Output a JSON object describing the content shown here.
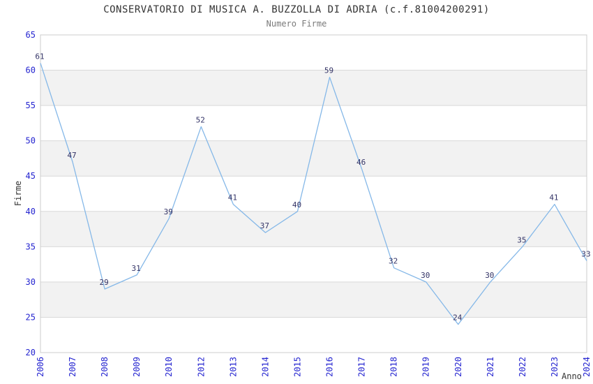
{
  "header": {
    "title": "CONSERVATORIO DI MUSICA A. BUZZOLLA DI ADRIA (c.f.81004200291)",
    "subtitle": "Numero Firme"
  },
  "chart_data": {
    "type": "line",
    "title": "CONSERVATORIO DI MUSICA A. BUZZOLLA DI ADRIA (c.f.81004200291)",
    "subtitle": "Numero Firme",
    "xlabel": "Anno",
    "ylabel": "Firme",
    "x": [
      "2006",
      "2007",
      "2008",
      "2009",
      "2010",
      "2012",
      "2013",
      "2014",
      "2015",
      "2016",
      "2017",
      "2018",
      "2019",
      "2020",
      "2021",
      "2022",
      "2023",
      "2024"
    ],
    "series": [
      {
        "name": "Numero Firme",
        "values": [
          61,
          47,
          29,
          31,
          39,
          52,
          41,
          37,
          40,
          59,
          46,
          32,
          30,
          24,
          30,
          35,
          41,
          33
        ]
      }
    ],
    "ylim": [
      20,
      65
    ],
    "ytick_step": 5,
    "grid": true,
    "alternating_bands": true,
    "legend": false,
    "data_labels": true
  },
  "colors": {
    "line": "#85b8e8",
    "tick_label": "#2424d0",
    "data_label": "#333366",
    "title": "#333333",
    "subtitle": "#7a7a7a",
    "band": "#f2f2f2",
    "gridline": "#d9d9d9",
    "border": "#cccccc",
    "axis_title": "#333333",
    "background": "#ffffff"
  }
}
